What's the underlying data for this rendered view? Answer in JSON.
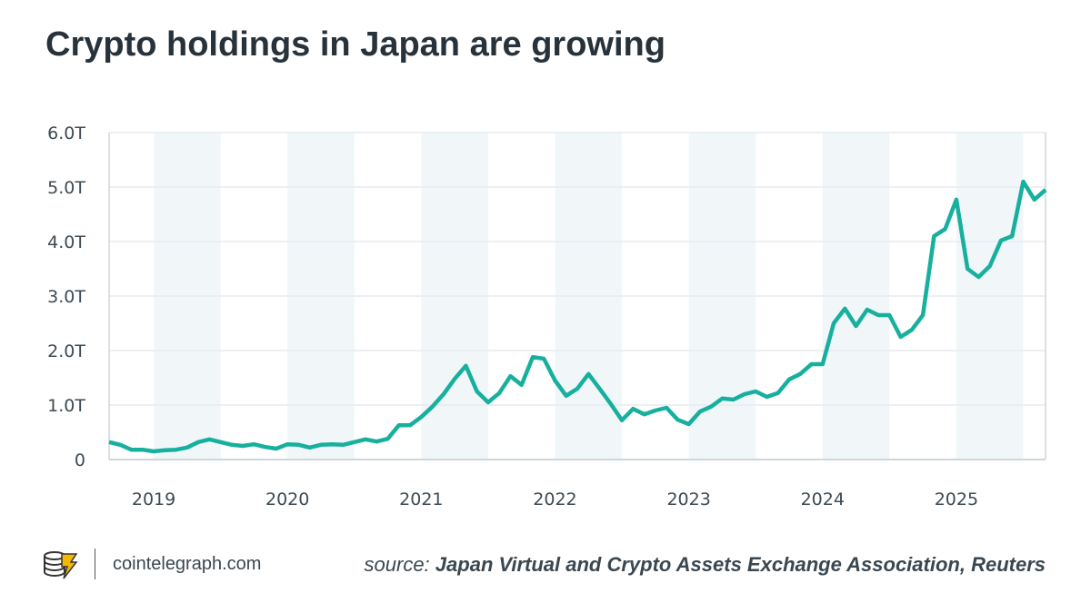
{
  "chart_data": {
    "type": "line",
    "title": "Crypto holdings in Japan are growing",
    "xlabel": "",
    "ylabel": "",
    "ylim": [
      0,
      6
    ],
    "yticks": [
      {
        "value": 0,
        "label": "0"
      },
      {
        "value": 1,
        "label": "1.0T"
      },
      {
        "value": 2,
        "label": "2.0T"
      },
      {
        "value": 3,
        "label": "3.0T"
      },
      {
        "value": 4,
        "label": "4.0T"
      },
      {
        "value": 5,
        "label": "5.0T"
      },
      {
        "value": 6,
        "label": "6.0T"
      }
    ],
    "xticks": [
      "2019",
      "2020",
      "2021",
      "2022",
      "2023",
      "2024",
      "2025"
    ],
    "xlim": [
      "2018-09",
      "2025-09"
    ],
    "grid": true,
    "shaded_bands": "first half of each year",
    "x": [
      "2018-09",
      "2018-10",
      "2018-11",
      "2018-12",
      "2019-01",
      "2019-02",
      "2019-03",
      "2019-04",
      "2019-05",
      "2019-06",
      "2019-07",
      "2019-08",
      "2019-09",
      "2019-10",
      "2019-11",
      "2019-12",
      "2020-01",
      "2020-02",
      "2020-03",
      "2020-04",
      "2020-05",
      "2020-06",
      "2020-07",
      "2020-08",
      "2020-09",
      "2020-10",
      "2020-11",
      "2020-12",
      "2021-01",
      "2021-02",
      "2021-03",
      "2021-04",
      "2021-05",
      "2021-06",
      "2021-07",
      "2021-08",
      "2021-09",
      "2021-10",
      "2021-11",
      "2021-12",
      "2022-01",
      "2022-02",
      "2022-03",
      "2022-04",
      "2022-05",
      "2022-06",
      "2022-07",
      "2022-08",
      "2022-09",
      "2022-10",
      "2022-11",
      "2022-12",
      "2023-01",
      "2023-02",
      "2023-03",
      "2023-04",
      "2023-05",
      "2023-06",
      "2023-07",
      "2023-08",
      "2023-09",
      "2023-10",
      "2023-11",
      "2023-12",
      "2024-01",
      "2024-02",
      "2024-03",
      "2024-04",
      "2024-05",
      "2024-06",
      "2024-07",
      "2024-08",
      "2024-09",
      "2024-10",
      "2024-11",
      "2024-12",
      "2025-01",
      "2025-02",
      "2025-03",
      "2025-04",
      "2025-05",
      "2025-06",
      "2025-07",
      "2025-08",
      "2025-09"
    ],
    "series": [
      {
        "color": "#17b09e",
        "values": [
          0.32,
          0.27,
          0.18,
          0.18,
          0.15,
          0.17,
          0.18,
          0.22,
          0.32,
          0.37,
          0.32,
          0.27,
          0.25,
          0.28,
          0.23,
          0.2,
          0.28,
          0.27,
          0.22,
          0.27,
          0.28,
          0.27,
          0.32,
          0.37,
          0.33,
          0.38,
          0.63,
          0.63,
          0.78,
          0.97,
          1.2,
          1.48,
          1.72,
          1.25,
          1.05,
          1.22,
          1.53,
          1.37,
          1.88,
          1.85,
          1.45,
          1.17,
          1.3,
          1.57,
          1.3,
          1.02,
          0.72,
          0.93,
          0.83,
          0.9,
          0.95,
          0.73,
          0.65,
          0.88,
          0.97,
          1.12,
          1.1,
          1.2,
          1.25,
          1.15,
          1.22,
          1.47,
          1.57,
          1.75,
          1.75,
          2.5,
          2.77,
          2.45,
          2.75,
          2.65,
          2.65,
          2.25,
          2.38,
          2.65,
          4.1,
          4.23,
          4.77,
          3.5,
          3.35,
          3.55,
          4.02,
          4.1,
          5.1,
          4.77,
          4.95
        ]
      }
    ]
  },
  "colors": {
    "title": "#27323b",
    "band": "#f1f7f9",
    "grid": "#e6ecef",
    "axis": "#cfd6da",
    "line": "#17b09e",
    "logo": "#f5b800"
  },
  "footer": {
    "logo_icon": "cointelegraph-logo",
    "site": "cointelegraph.com",
    "source_label": "source:",
    "source_text": "Japan Virtual and Crypto Assets Exchange Association, Reuters"
  }
}
